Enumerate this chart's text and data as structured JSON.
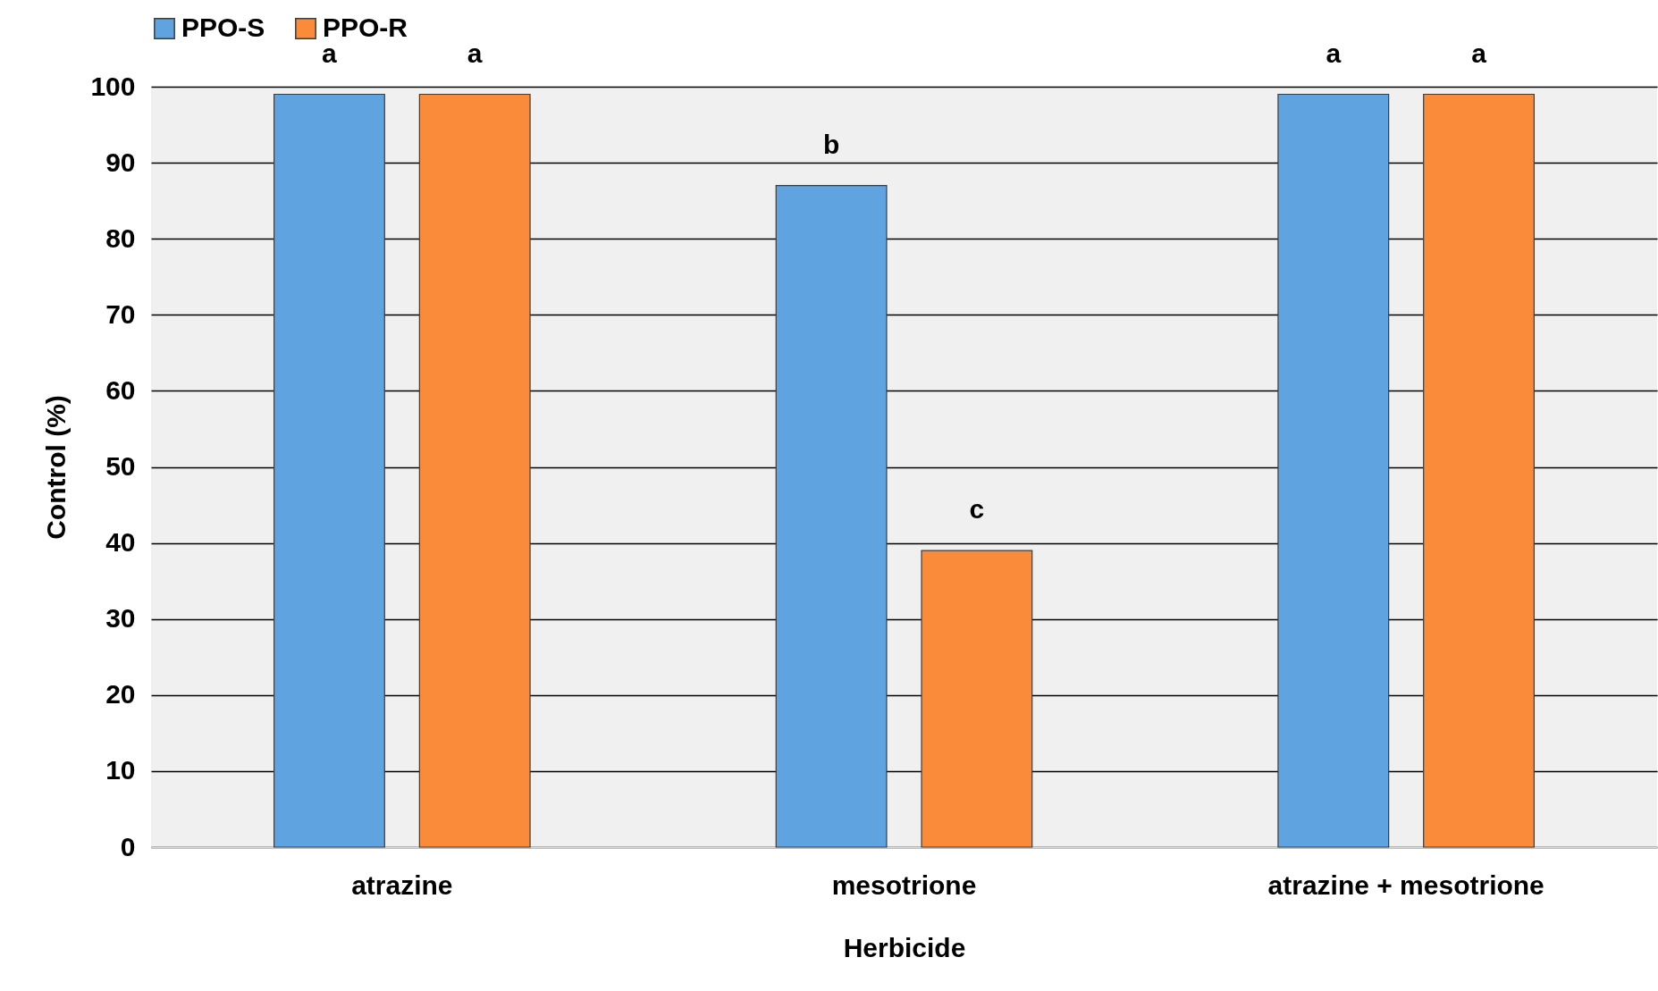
{
  "chart_data": {
    "type": "bar",
    "xlabel": "Herbicide",
    "ylabel": "Control (%)",
    "categories": [
      "atrazine",
      "mesotrione",
      "atrazine + mesotrione"
    ],
    "series": [
      {
        "name": "PPO-S",
        "color": "#5fa3e0",
        "values": [
          99,
          87,
          99
        ],
        "value_labels": [
          "a",
          "b",
          "a"
        ]
      },
      {
        "name": "PPO-R",
        "color": "#f98b3a",
        "values": [
          99,
          39,
          99
        ],
        "value_labels": [
          "a",
          "c",
          "a"
        ]
      }
    ],
    "ylim": [
      0,
      100
    ],
    "yticks": [
      0,
      10,
      20,
      30,
      40,
      50,
      60,
      70,
      80,
      90,
      100
    ],
    "grid": "y",
    "legend": "top"
  }
}
